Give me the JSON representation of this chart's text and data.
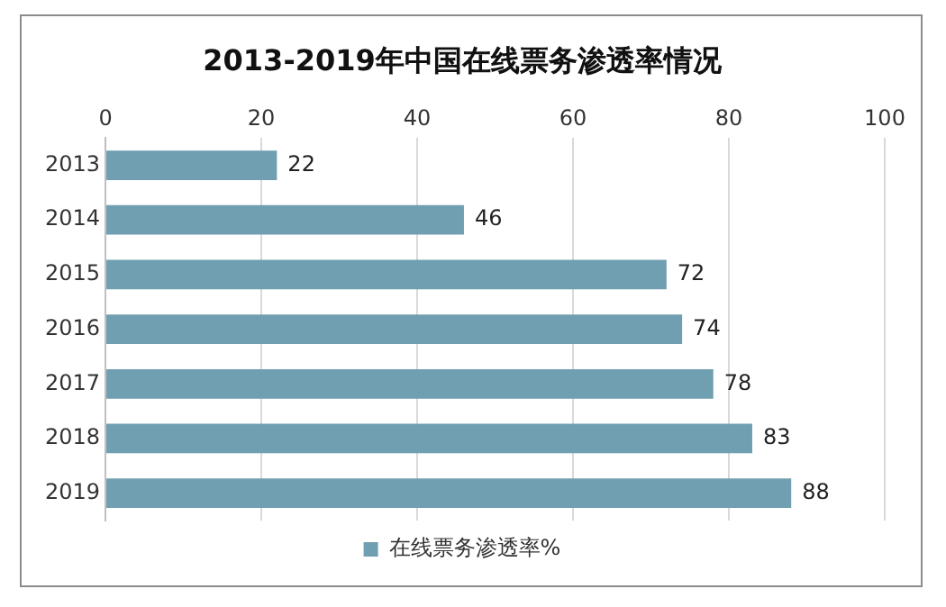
{
  "chart_data": {
    "type": "bar",
    "orientation": "horizontal",
    "title": "2013-2019年中国在线票务渗透率情况",
    "categories": [
      "2013",
      "2014",
      "2015",
      "2016",
      "2017",
      "2018",
      "2019"
    ],
    "series": [
      {
        "name": "在线票务渗透率%",
        "color": "#6f9fb1",
        "values": [
          22,
          46,
          72,
          74,
          78,
          83,
          88
        ]
      }
    ],
    "xlim": [
      0,
      100
    ],
    "xticks": [
      0,
      20,
      40,
      60,
      80,
      100
    ],
    "grid": "x",
    "legend": "bottom",
    "data_labels": true
  }
}
